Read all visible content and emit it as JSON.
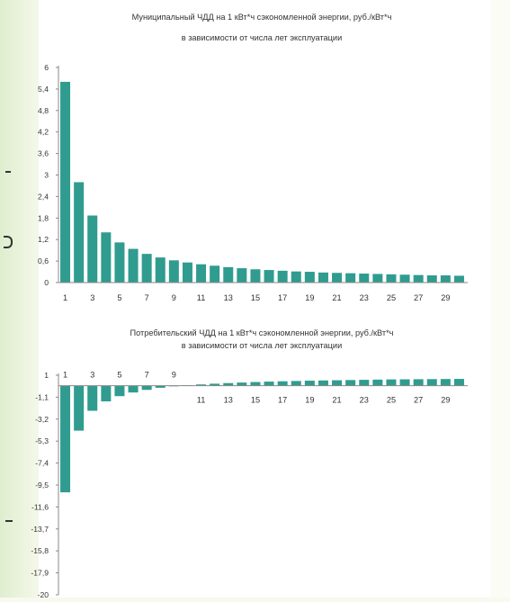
{
  "colors": {
    "bar": "#2f9c8f",
    "axis": "#888888",
    "text": "#333333",
    "background": "#ffffff"
  },
  "chart_data": [
    {
      "type": "bar",
      "title": "Муниципальный ЧДД на 1 кВт*ч сэкономленной энергии, руб./кВт*ч",
      "subtitle": "в зависимости от числа лет эксплуатации",
      "x": [
        1,
        2,
        3,
        4,
        5,
        6,
        7,
        8,
        9,
        10,
        11,
        12,
        13,
        14,
        15,
        16,
        17,
        18,
        19,
        20,
        21,
        22,
        23,
        24,
        25,
        26,
        27,
        28,
        29,
        30
      ],
      "values": [
        5.6,
        2.8,
        1.87,
        1.4,
        1.12,
        0.94,
        0.8,
        0.7,
        0.62,
        0.56,
        0.51,
        0.47,
        0.43,
        0.4,
        0.37,
        0.35,
        0.33,
        0.31,
        0.3,
        0.28,
        0.27,
        0.26,
        0.25,
        0.24,
        0.23,
        0.22,
        0.21,
        0.2,
        0.2,
        0.19
      ],
      "xtick_labels": [
        "1",
        "3",
        "5",
        "7",
        "9",
        "11",
        "13",
        "15",
        "17",
        "19",
        "21",
        "23",
        "25",
        "27",
        "29"
      ],
      "ytick_labels": [
        "6",
        "5,4",
        "4,8",
        "4,2",
        "3,6",
        "3",
        "2,4",
        "1,8",
        "1,2",
        "0,6",
        "0"
      ],
      "ylim": [
        0,
        6
      ],
      "grid": false,
      "legend": "none"
    },
    {
      "type": "bar",
      "title": "Потребительский ЧДД на 1 кВт*ч сэкономленной энергии, руб./кВт*ч",
      "subtitle": "в зависимости от числа лет эксплуатации",
      "x": [
        1,
        2,
        3,
        4,
        5,
        6,
        7,
        8,
        9,
        10,
        11,
        12,
        13,
        14,
        15,
        16,
        17,
        18,
        19,
        20,
        21,
        22,
        23,
        24,
        25,
        26,
        27,
        28,
        29,
        30
      ],
      "values": [
        -10.2,
        -4.3,
        -2.4,
        -1.5,
        -1.0,
        -0.65,
        -0.4,
        -0.2,
        -0.06,
        0.04,
        0.12,
        0.19,
        0.25,
        0.3,
        0.35,
        0.39,
        0.42,
        0.45,
        0.48,
        0.5,
        0.52,
        0.54,
        0.56,
        0.58,
        0.6,
        0.61,
        0.62,
        0.63,
        0.64,
        0.65
      ],
      "xtick_labels": [
        "1",
        "3",
        "5",
        "7",
        "9",
        "11",
        "13",
        "15",
        "17",
        "19",
        "21",
        "23",
        "25",
        "27",
        "29"
      ],
      "ytick_labels": [
        "1",
        "-1,1",
        "-3,2",
        "-5,3",
        "-7,4",
        "-9,5",
        "-11,6",
        "-13,7",
        "-15,8",
        "-17,9",
        "-20"
      ],
      "ylim": [
        -20,
        1
      ],
      "grid": false,
      "legend": "none"
    }
  ]
}
